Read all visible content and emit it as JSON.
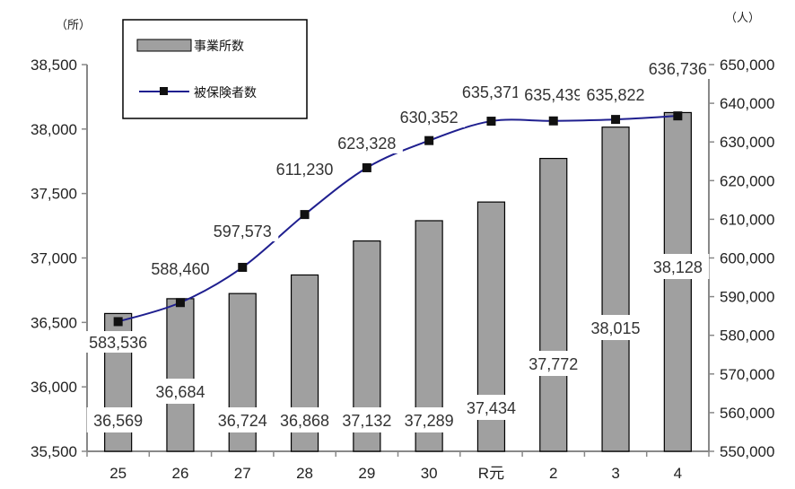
{
  "chart_data": {
    "type": "bar+line",
    "categories": [
      "25",
      "26",
      "27",
      "28",
      "29",
      "30",
      "R元",
      "2",
      "3",
      "4"
    ],
    "series": [
      {
        "name": "事業所数",
        "type": "bar",
        "axis": "left",
        "values": [
          36569,
          36684,
          36724,
          36868,
          37132,
          37289,
          37434,
          37772,
          38015,
          38128
        ],
        "labels": [
          "36,569",
          "36,684",
          "36,724",
          "36,868",
          "37,132",
          "37,289",
          "37,434",
          "37,772",
          "38,015",
          "38,128"
        ],
        "color": "#a0a0a0"
      },
      {
        "name": "被保険者数",
        "type": "line",
        "axis": "right",
        "values": [
          583536,
          588460,
          597573,
          611230,
          623328,
          630352,
          635371,
          635439,
          635822,
          636736
        ],
        "labels": [
          "583,536",
          "588,460",
          "597,573",
          "611,230",
          "623,328",
          "630,352",
          "635,371",
          "635,439",
          "635,822",
          "636,736"
        ],
        "color": "#1f1f8f"
      }
    ],
    "y_left": {
      "unit": "（所）",
      "ylim": [
        35500,
        38500
      ],
      "ticks": [
        35500,
        36000,
        36500,
        37000,
        37500,
        38000,
        38500
      ],
      "tick_labels": [
        "35,500",
        "36,000",
        "36,500",
        "37,000",
        "37,500",
        "38,000",
        "38,500"
      ]
    },
    "y_right": {
      "unit": "（人）",
      "ylim": [
        550000,
        650000
      ],
      "ticks": [
        550000,
        560000,
        570000,
        580000,
        590000,
        600000,
        610000,
        620000,
        630000,
        640000,
        650000
      ],
      "tick_labels": [
        "550,000",
        "560,000",
        "570,000",
        "580,000",
        "590,000",
        "600,000",
        "610,000",
        "620,000",
        "630,000",
        "640,000",
        "650,000"
      ]
    },
    "legend": {
      "placement": "top-left",
      "items": [
        "事業所数",
        "被保険者数"
      ]
    },
    "grid": false
  }
}
